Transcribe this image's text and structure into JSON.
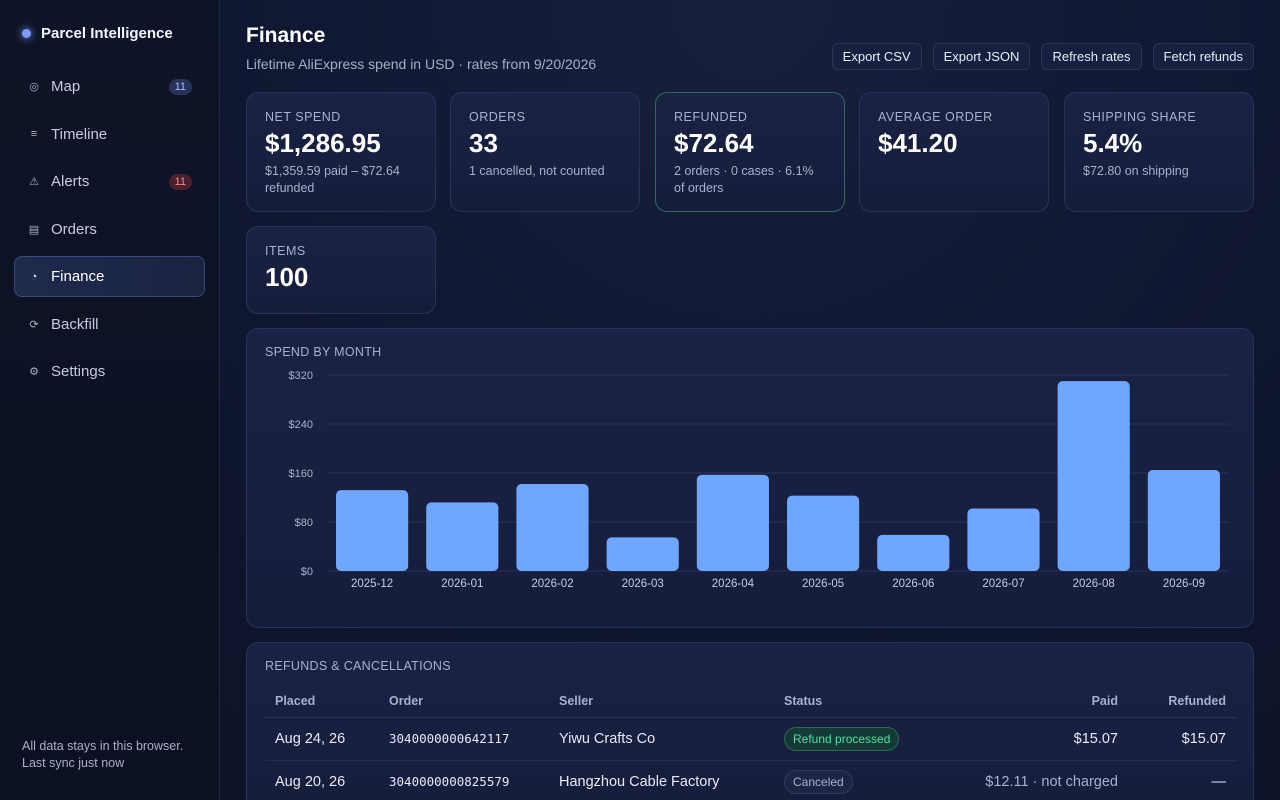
{
  "sidebar": {
    "brand": "Parcel Intelligence",
    "items": [
      {
        "label": "Map",
        "icon": "target-icon",
        "glyph": "◎",
        "badge": "11",
        "badge_type": "info"
      },
      {
        "label": "Timeline",
        "icon": "list-icon",
        "glyph": "≡",
        "badge": ""
      },
      {
        "label": "Alerts",
        "icon": "warning-icon",
        "glyph": "⚠",
        "badge": "11",
        "badge_type": "alert"
      },
      {
        "label": "Orders",
        "icon": "orders-icon",
        "glyph": "▤",
        "badge": ""
      },
      {
        "label": "Finance",
        "icon": "pie-chart-icon",
        "glyph": "◔",
        "badge": "",
        "active": true
      },
      {
        "label": "Backfill",
        "icon": "refresh-icon",
        "glyph": "⟳",
        "badge": ""
      },
      {
        "label": "Settings",
        "icon": "gear-icon",
        "glyph": "⚙",
        "badge": ""
      }
    ],
    "footer_line1": "All data stays in this browser.",
    "footer_line2": "Last sync just now"
  },
  "header": {
    "title": "Finance",
    "subtitle": "Lifetime AliExpress spend in USD · rates from 9/20/2026",
    "actions": [
      "Export CSV",
      "Export JSON",
      "Refresh rates",
      "Fetch refunds"
    ]
  },
  "cards": {
    "net_spend": {
      "label": "NET SPEND",
      "value": "$1,286.95",
      "sub": "$1,359.59 paid – $72.64 refunded"
    },
    "orders": {
      "label": "ORDERS",
      "value": "33",
      "sub": "1 cancelled, not counted"
    },
    "refunded": {
      "label": "REFUNDED",
      "value": "$72.64",
      "sub": "2 orders · 0 cases · 6.1% of orders"
    },
    "average_order": {
      "label": "AVERAGE ORDER",
      "value": "$41.20",
      "sub": ""
    },
    "shipping_share": {
      "label": "SHIPPING SHARE",
      "value": "5.4%",
      "sub": "$72.80 on shipping"
    },
    "items": {
      "label": "ITEMS",
      "value": "100",
      "sub": ""
    }
  },
  "chart_data": {
    "type": "bar",
    "title": "SPEND BY MONTH",
    "categories": [
      "2025-12",
      "2026-01",
      "2026-02",
      "2026-03",
      "2026-04",
      "2026-05",
      "2026-06",
      "2026-07",
      "2026-08",
      "2026-09"
    ],
    "values": [
      132,
      112,
      142,
      55,
      157,
      123,
      59,
      102,
      310,
      165
    ],
    "ylim": [
      0,
      320
    ],
    "yticks": [
      0,
      80,
      160,
      240,
      320
    ],
    "ytick_labels": [
      "$0",
      "$80",
      "$160",
      "$240",
      "$320"
    ],
    "bar_color": "#6fa6ff",
    "grid": true
  },
  "refunds": {
    "title": "REFUNDS & CANCELLATIONS",
    "columns": [
      "Placed",
      "Order",
      "Seller",
      "Status",
      "Paid",
      "Refunded"
    ],
    "rows": [
      {
        "placed": "Aug 24, 26",
        "order": "3040000000642117",
        "seller": "Yiwu Crafts Co",
        "status": "Refund processed",
        "status_type": "ok",
        "paid": "$15.07",
        "refunded": "$15.07"
      },
      {
        "placed": "Aug 20, 26",
        "order": "3040000000825579",
        "seller": "Hangzhou Cable Factory",
        "status": "Canceled",
        "status_type": "muted",
        "paid": "$12.11 · not charged",
        "refunded": "—"
      }
    ]
  }
}
